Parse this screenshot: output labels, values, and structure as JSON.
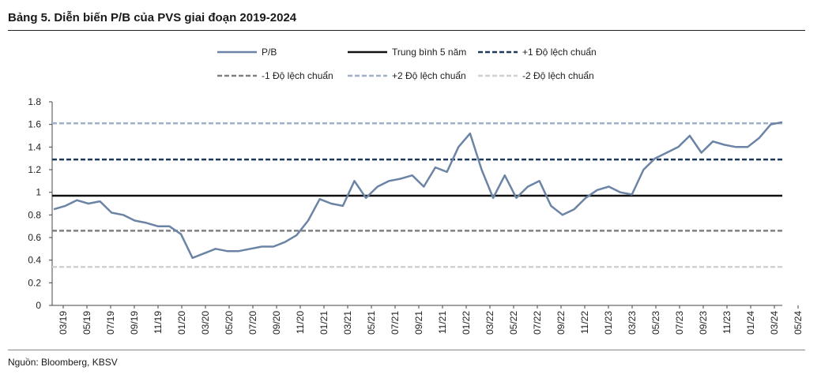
{
  "title": "Bảng 5. Diễn biến P/B của PVS giai đoạn 2019-2024",
  "source": "Nguồn: Bloomberg, KBSV",
  "chart_data": {
    "type": "line",
    "title": "Bảng 5. Diễn biến P/B của PVS giai đoạn 2019-2024",
    "xlabel": "",
    "ylabel": "",
    "ylim": [
      0,
      1.8
    ],
    "yticks": [
      "0",
      "0.2",
      "0.4",
      "0.6",
      "0.8",
      "1",
      "1.2",
      "1.4",
      "1.6",
      "1.8"
    ],
    "x_ticks": [
      "03/19",
      "05/19",
      "07/19",
      "09/19",
      "11/19",
      "01/20",
      "03/20",
      "05/20",
      "07/20",
      "09/20",
      "11/20",
      "01/21",
      "03/21",
      "05/21",
      "07/21",
      "09/21",
      "11/21",
      "01/22",
      "03/22",
      "05/22",
      "07/22",
      "09/22",
      "11/22",
      "01/23",
      "03/23",
      "05/23",
      "07/23",
      "09/23",
      "11/23",
      "01/24",
      "03/24",
      "05/24"
    ],
    "grid": false,
    "legend_placement": "top",
    "series": [
      {
        "name": "P/B",
        "color": "#6b84a6",
        "style": "solid",
        "x": [
          "03/19",
          "04/19",
          "05/19",
          "06/19",
          "07/19",
          "08/19",
          "09/19",
          "10/19",
          "11/19",
          "12/19",
          "01/20",
          "02/20",
          "03/20",
          "04/20",
          "05/20",
          "06/20",
          "07/20",
          "08/20",
          "09/20",
          "10/20",
          "11/20",
          "12/20",
          "01/21",
          "02/21",
          "03/21",
          "04/21",
          "05/21",
          "06/21",
          "07/21",
          "08/21",
          "09/21",
          "10/21",
          "11/21",
          "12/21",
          "01/22",
          "02/22",
          "03/22",
          "04/22",
          "05/22",
          "06/22",
          "07/22",
          "08/22",
          "09/22",
          "10/22",
          "11/22",
          "12/22",
          "01/23",
          "02/23",
          "03/23",
          "04/23",
          "05/23",
          "06/23",
          "07/23",
          "08/23",
          "09/23",
          "10/23",
          "11/23",
          "12/23",
          "01/24",
          "02/24",
          "03/24",
          "04/24",
          "05/24",
          "06/24"
        ],
        "values": [
          0.85,
          0.88,
          0.93,
          0.9,
          0.92,
          0.82,
          0.8,
          0.75,
          0.73,
          0.7,
          0.7,
          0.63,
          0.42,
          0.46,
          0.5,
          0.48,
          0.48,
          0.5,
          0.52,
          0.52,
          0.56,
          0.62,
          0.75,
          0.94,
          0.9,
          0.88,
          1.1,
          0.95,
          1.05,
          1.1,
          1.12,
          1.15,
          1.05,
          1.22,
          1.18,
          1.4,
          1.52,
          1.2,
          0.95,
          1.15,
          0.95,
          1.05,
          1.1,
          0.88,
          0.8,
          0.85,
          0.95,
          1.02,
          1.05,
          1.0,
          0.98,
          1.2,
          1.3,
          1.35,
          1.4,
          1.5,
          1.35,
          1.45,
          1.42,
          1.4,
          1.4,
          1.48,
          1.6,
          1.62
        ]
      },
      {
        "name": "Trung bình 5 năm",
        "color": "#111111",
        "style": "solid",
        "value": 0.97
      },
      {
        "name": "+1 Độ lệch chuẩn",
        "color": "#1d3a5c",
        "style": "dashed",
        "value": 1.29
      },
      {
        "name": "-1 Độ lệch chuẩn",
        "color": "#808080",
        "style": "dashed",
        "value": 0.66
      },
      {
        "name": "+2 Độ lệch chuẩn",
        "color": "#9fb0c8",
        "style": "dashed",
        "value": 1.61
      },
      {
        "name": "-2 Độ lệch chuẩn",
        "color": "#d0d0d0",
        "style": "dashed",
        "value": 0.34
      }
    ]
  }
}
